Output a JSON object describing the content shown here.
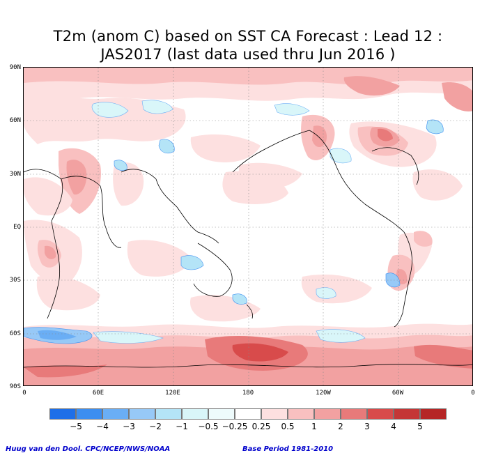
{
  "title": {
    "line1": "T2m (anom C) based on SST CA Forecast : Lead 12 :",
    "line2": "JAS2017 (last data used thru Jun 2016 )"
  },
  "axes": {
    "lat_labels": [
      "90N",
      "60N",
      "30N",
      "EQ",
      "30S",
      "60S",
      "90S"
    ],
    "lon_labels": [
      "0",
      "60E",
      "120E",
      "180",
      "120W",
      "60W",
      "0"
    ]
  },
  "colorbar": {
    "labels": [
      "−5",
      "−4",
      "−3",
      "−2",
      "−1",
      "−0.5",
      "−0.25",
      "0.25",
      "0.5",
      "1",
      "2",
      "3",
      "4",
      "5"
    ],
    "colors": [
      "#1e6fe8",
      "#3c8ef0",
      "#6aaef5",
      "#97c9f7",
      "#b4e4f7",
      "#d9f6f9",
      "#ffffff",
      "#fde0e0",
      "#f9c0c0",
      "#f2a1a1",
      "#e87a7a",
      "#d84b4b",
      "#b52626"
    ]
  },
  "credits": {
    "left": "Huug van den Dool. CPC/NCEP/NWS/NOAA",
    "right": "Base Period 1981-2010"
  }
}
